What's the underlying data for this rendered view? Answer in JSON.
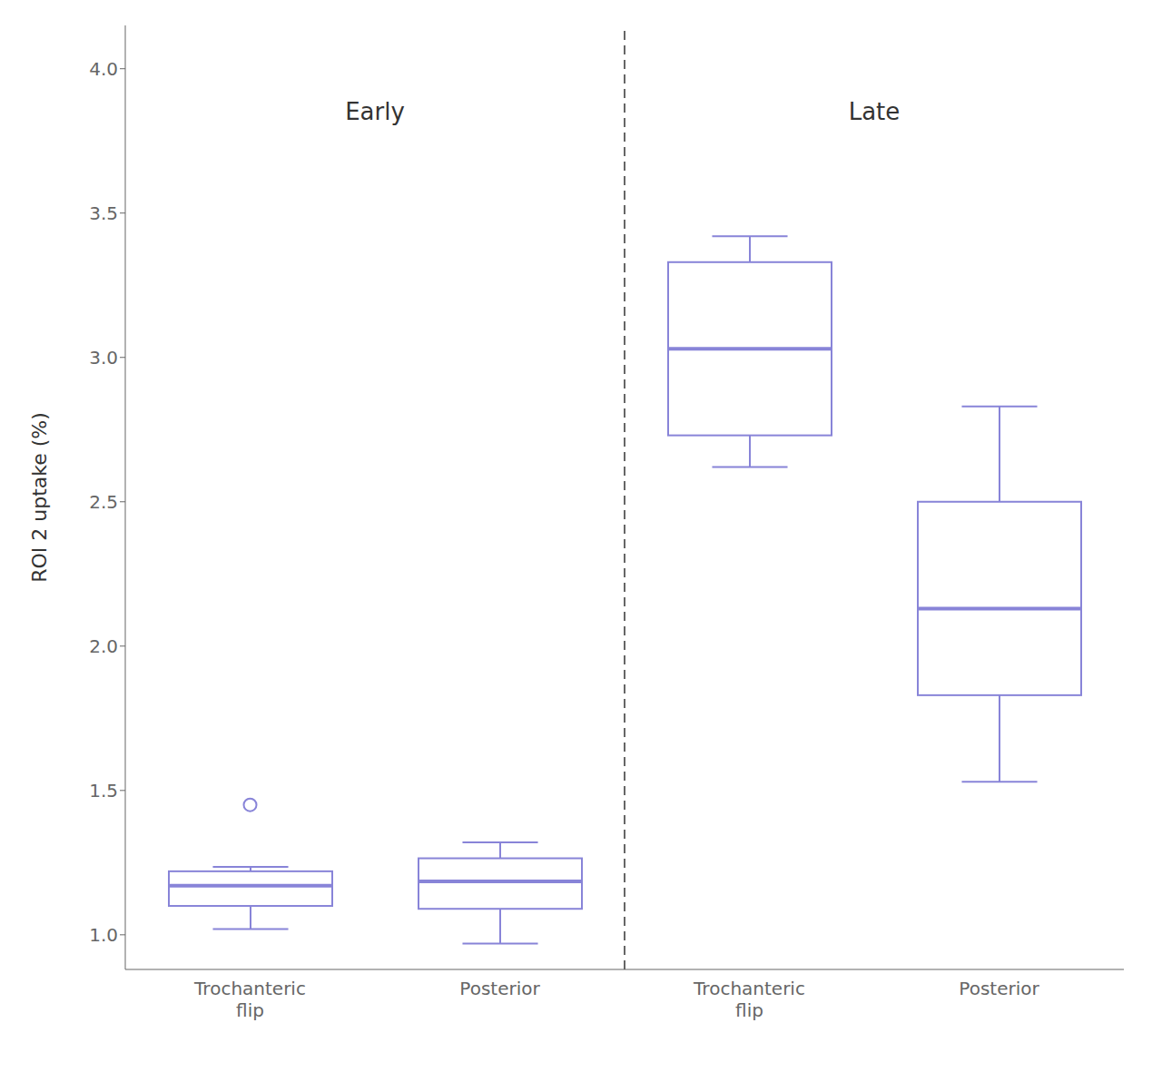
{
  "chart_data": {
    "type": "box",
    "title": "",
    "ylabel": "ROI 2 uptake (%)",
    "categories": [
      "Trochanteric\nflip",
      "Posterior",
      "Trochanteric\nflip",
      "Posterior"
    ],
    "groups": [
      "Early",
      "Early",
      "Late",
      "Late"
    ],
    "whisker_low": [
      1.02,
      0.97,
      2.62,
      1.53
    ],
    "q1": [
      1.1,
      1.09,
      2.73,
      1.83
    ],
    "median": [
      1.17,
      1.185,
      3.03,
      2.13
    ],
    "q3": [
      1.22,
      1.265,
      3.33,
      2.5
    ],
    "whisker_high": [
      1.235,
      1.32,
      3.42,
      2.83
    ],
    "outliers": [
      [
        1.45
      ],
      [],
      [],
      []
    ],
    "annotations": [
      {
        "text": "Early",
        "y": 3.9
      },
      {
        "text": "Late",
        "y": 3.9
      }
    ],
    "ylim": [
      0.88,
      4.15
    ],
    "yticks": [
      {
        "value": 1.0,
        "label": "1.0"
      },
      1.5,
      {
        "value": 2.0,
        "label": "2.0"
      },
      2.5,
      {
        "value": 3.0,
        "label": "3.0"
      },
      3.5,
      {
        "value": 4.0,
        "label": "4.0"
      }
    ],
    "grid": false
  }
}
